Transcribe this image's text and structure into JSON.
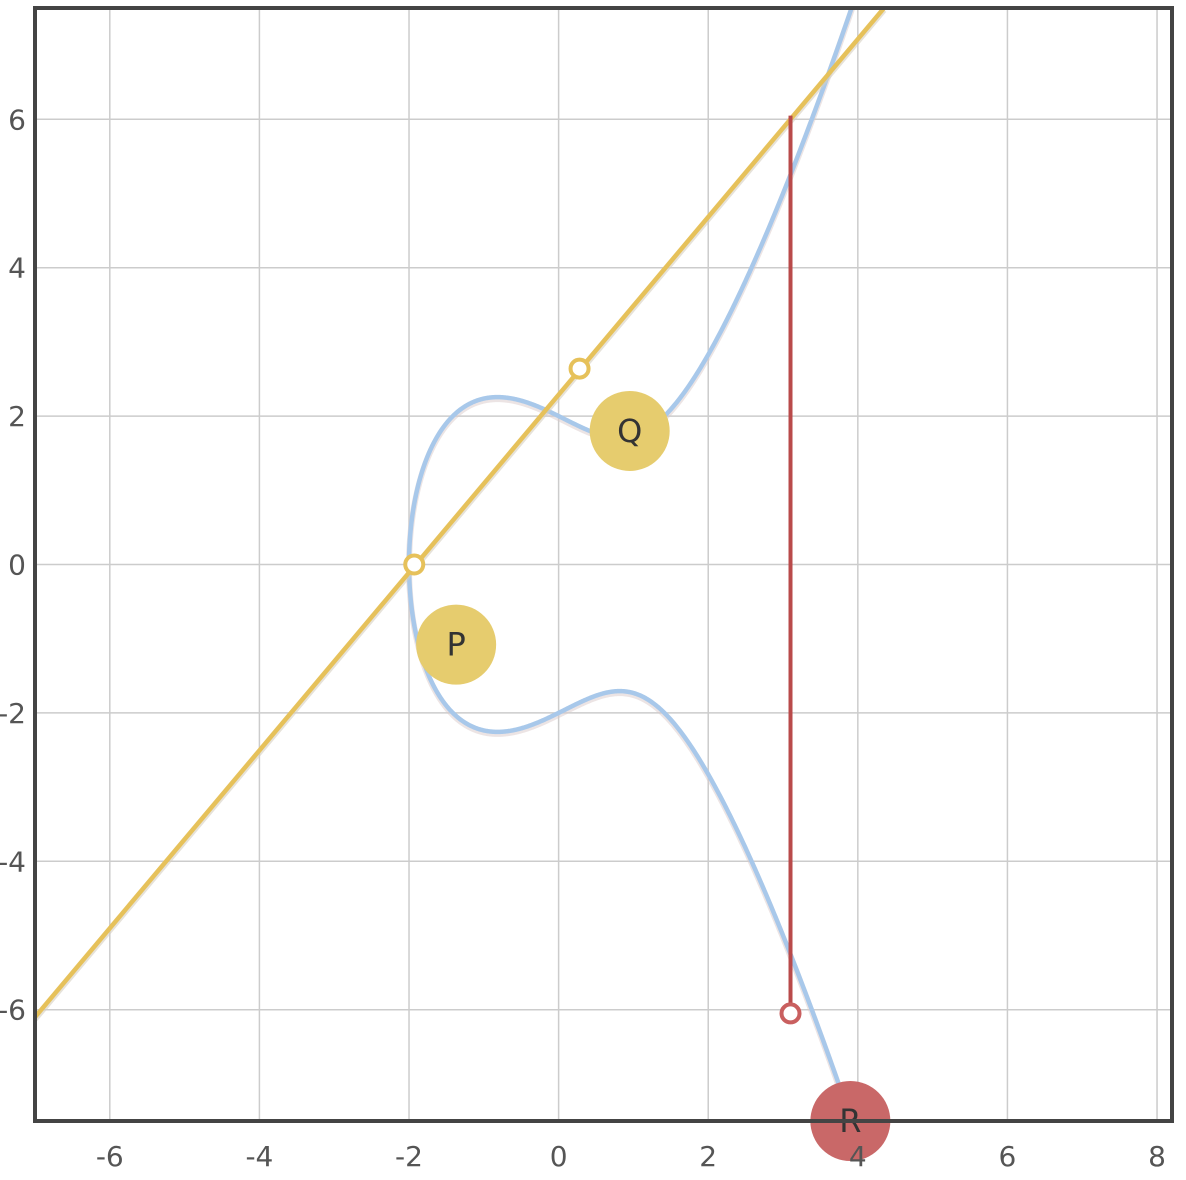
{
  "chart_data": {
    "type": "line",
    "title": "",
    "xlabel": "",
    "ylabel": "",
    "xlim": [
      -7,
      8.2
    ],
    "ylim": [
      -7.5,
      7.5
    ],
    "grid": true,
    "x_ticks": [
      "-6",
      "-4",
      "-2",
      "0",
      "2",
      "4",
      "6",
      "8"
    ],
    "y_ticks": [
      "6",
      "4",
      "2",
      "0",
      "-2",
      "-4",
      "-6"
    ],
    "x_tick_values": [
      -6,
      -4,
      -2,
      0,
      2,
      4,
      6,
      8
    ],
    "y_tick_values": [
      6,
      4,
      2,
      0,
      -2,
      -4,
      -6
    ],
    "curve": {
      "equation": "y^2 = x^3 - 2x + 4",
      "a": -2,
      "b": 4,
      "color": "#a8c8ea"
    },
    "secant_line": {
      "from": [
        -7,
        -6.1
      ],
      "to": [
        4.35,
        7.5
      ],
      "color": "#e6c15a"
    },
    "vertical_line": {
      "x": 3.1,
      "y_from": 6.05,
      "y_to": -6.05,
      "color": "#b94a4a"
    },
    "points": [
      {
        "name": "P",
        "x": -1.93,
        "y": 0,
        "label": "P",
        "label_x": -1.37,
        "label_y": -1.08,
        "color": "#e6c15a"
      },
      {
        "name": "Q",
        "x": 0.28,
        "y": 2.64,
        "label": "Q",
        "label_x": 0.95,
        "label_y": 1.8,
        "color": "#e6c15a"
      },
      {
        "name": "R",
        "x": 3.1,
        "y": -6.05,
        "label": "R",
        "label_x": 3.9,
        "label_y": -7.5,
        "color": "#c95f5f"
      }
    ],
    "colors": {
      "axis": "#444444",
      "grid": "#cccccc",
      "label_yellow": "#e6cc6e",
      "label_red": "#c96868"
    }
  }
}
